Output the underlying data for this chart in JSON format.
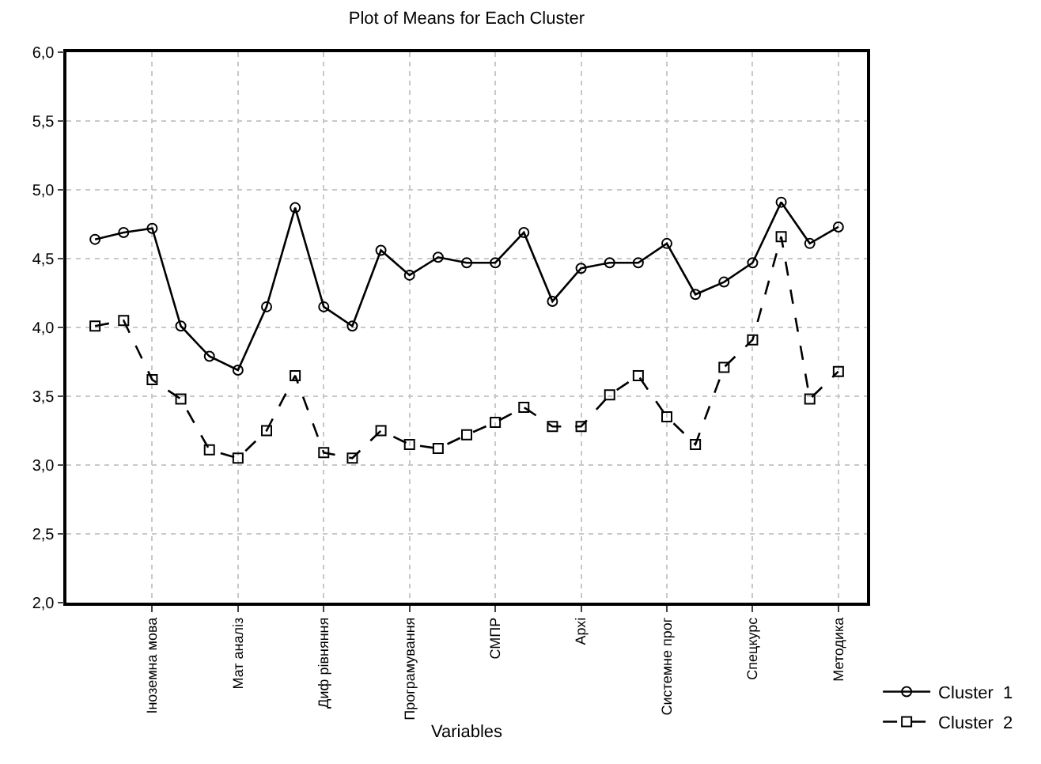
{
  "chart_data": {
    "type": "line",
    "title": "Plot of Means for Each Cluster",
    "xlabel": "Variables",
    "categories": [
      null,
      null,
      "Іноземна мова",
      null,
      null,
      "Мат аналіз",
      null,
      null,
      "Диф рівняння",
      null,
      null,
      "Програмування",
      null,
      null,
      "СМПР",
      null,
      null,
      "Архі",
      null,
      null,
      "Системне прог",
      null,
      null,
      "Спецкурс",
      null,
      null,
      "Методика"
    ],
    "series": [
      {
        "name": "Cluster  1",
        "color": "#000000",
        "marker": "circle",
        "line_style": "solid",
        "values": [
          4.64,
          4.69,
          4.72,
          4.01,
          3.79,
          3.69,
          4.15,
          4.87,
          4.15,
          4.01,
          4.56,
          4.38,
          4.51,
          4.47,
          4.47,
          4.69,
          4.19,
          4.43,
          4.47,
          4.47,
          4.61,
          4.24,
          4.33,
          4.47,
          4.91,
          4.61,
          4.73
        ]
      },
      {
        "name": "Cluster  2",
        "color": "#000000",
        "marker": "square",
        "line_style": "dashed",
        "values": [
          4.01,
          4.05,
          3.62,
          3.48,
          3.11,
          3.05,
          3.25,
          3.65,
          3.09,
          3.05,
          3.25,
          3.15,
          3.12,
          3.22,
          3.31,
          3.42,
          3.28,
          3.28,
          3.51,
          3.65,
          3.35,
          3.15,
          3.71,
          3.91,
          4.66,
          3.48,
          3.68
        ]
      }
    ],
    "ylim": [
      2,
      6
    ],
    "yticks": [
      {
        "value": 2,
        "label": "2,0"
      },
      {
        "value": 2.5,
        "label": "2,5"
      },
      {
        "value": 3,
        "label": "3,0"
      },
      {
        "value": 3.5,
        "label": "3,5"
      },
      {
        "value": 4,
        "label": "4,0"
      },
      {
        "value": 4.5,
        "label": "4,5"
      },
      {
        "value": 5,
        "label": "5,0"
      },
      {
        "value": 5.5,
        "label": "5,5"
      },
      {
        "value": 6,
        "label": "6,0"
      }
    ],
    "grid": true,
    "legend": "bottom right"
  }
}
